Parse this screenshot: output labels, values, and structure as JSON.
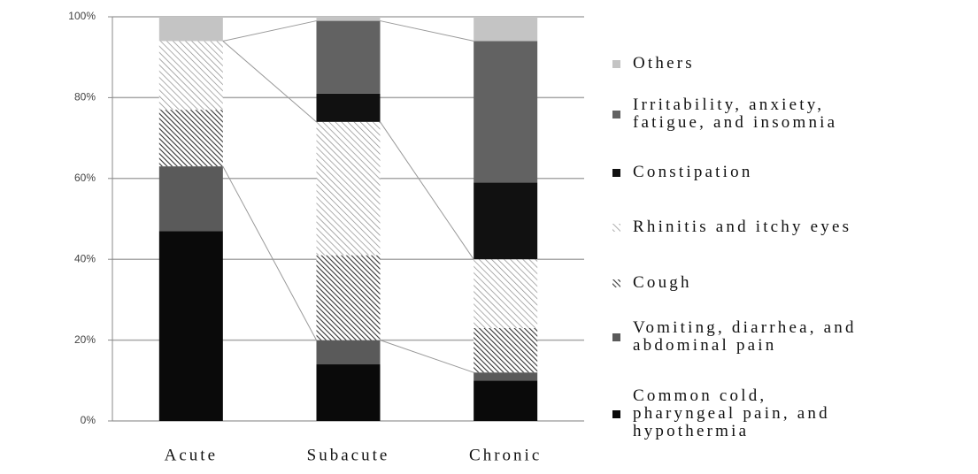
{
  "chart_data": {
    "type": "stacked-bar",
    "categories": [
      "Acute",
      "Subacute",
      "Chronic"
    ],
    "series": [
      {
        "name": "Common cold,\npharyngeal pain, and\nhypothermia",
        "color": "#0a0a0a",
        "values": [
          47,
          14,
          10
        ]
      },
      {
        "name": "Vomiting, diarrhea, and\nabdominal pain",
        "color": "#5a5a5a",
        "values": [
          16,
          6,
          2
        ]
      },
      {
        "name": "Cough",
        "color": "#333333",
        "hatch": "dense",
        "values": [
          14,
          21,
          11
        ]
      },
      {
        "name": "Rhinitis and itchy eyes",
        "color": "#8a8a8a",
        "hatch": "light",
        "values": [
          17,
          33,
          17
        ]
      },
      {
        "name": "Constipation",
        "color": "#111111",
        "values": [
          0,
          7,
          19
        ]
      },
      {
        "name": "Irritability, anxiety,\nfatigue, and insomnia",
        "color": "#626262",
        "values": [
          0,
          18,
          35
        ]
      },
      {
        "name": "Others",
        "color": "#c4c4c4",
        "values": [
          6,
          1,
          6
        ]
      }
    ],
    "ylim": [
      0,
      100
    ],
    "yticks": [
      {
        "value": 0,
        "label": "0%"
      },
      {
        "value": 20,
        "label": "20%"
      },
      {
        "value": 40,
        "label": "40%"
      },
      {
        "value": 60,
        "label": "60%"
      },
      {
        "value": 80,
        "label": "80%"
      },
      {
        "value": 100,
        "label": "100%"
      }
    ],
    "grid": true
  }
}
